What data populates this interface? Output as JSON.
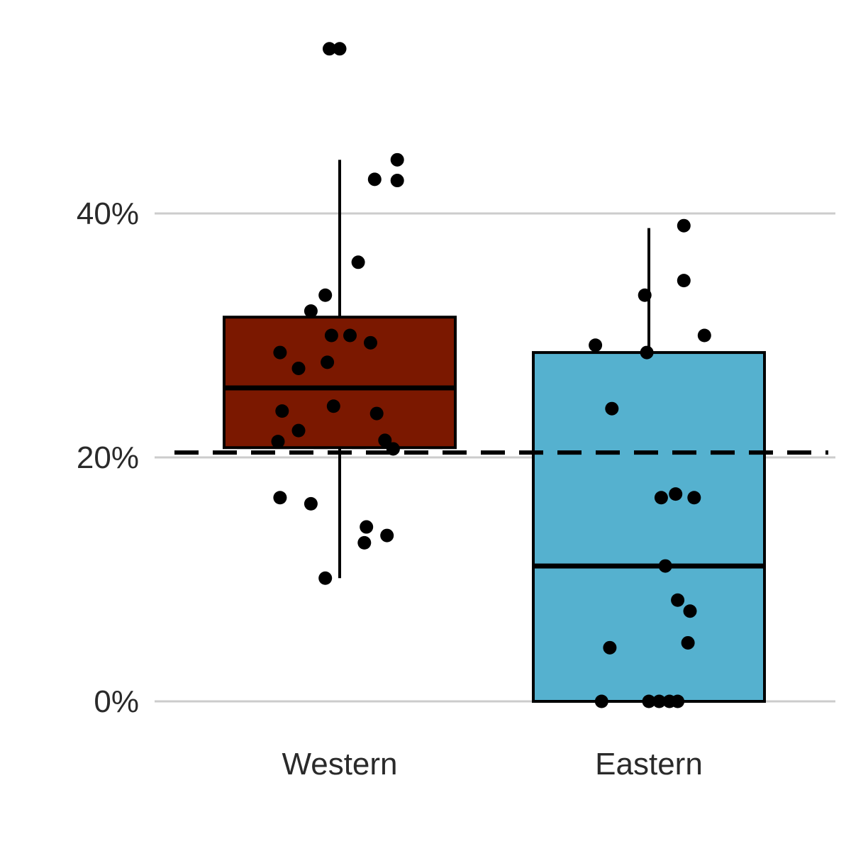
{
  "chart_data": {
    "type": "box",
    "title": "",
    "xlabel": "",
    "ylabel": "",
    "categories": [
      "Western",
      "Eastern"
    ],
    "ylim": [
      -0.025,
      0.535
    ],
    "yticks": [
      {
        "value": 0.0,
        "label": "0%"
      },
      {
        "value": 0.2,
        "label": "20%"
      },
      {
        "value": 0.4,
        "label": "40%"
      }
    ],
    "grid": "horizontal",
    "legend": "none",
    "reference_line": {
      "value": 0.204,
      "style": "dashed",
      "color": "#000000"
    },
    "boxes": [
      {
        "name": "Western",
        "color": "#7b1800",
        "q1": 0.208,
        "median": 0.257,
        "q3": 0.315,
        "whisker_low": 0.101,
        "whisker_high": 0.444
      },
      {
        "name": "Eastern",
        "color": "#55b1cf",
        "q1": 0.0,
        "median": 0.111,
        "q3": 0.286,
        "whisker_low": 0.0,
        "whisker_high": 0.388
      }
    ],
    "points": [
      {
        "group": "Western",
        "jitter": -0.05,
        "y": 0.535
      },
      {
        "group": "Western",
        "jitter": 0.0,
        "y": 0.535
      },
      {
        "group": "Western",
        "jitter": 0.28,
        "y": 0.444
      },
      {
        "group": "Western",
        "jitter": 0.17,
        "y": 0.428
      },
      {
        "group": "Western",
        "jitter": 0.28,
        "y": 0.427
      },
      {
        "group": "Western",
        "jitter": 0.09,
        "y": 0.36
      },
      {
        "group": "Western",
        "jitter": -0.07,
        "y": 0.333
      },
      {
        "group": "Western",
        "jitter": -0.14,
        "y": 0.32
      },
      {
        "group": "Western",
        "jitter": -0.04,
        "y": 0.3
      },
      {
        "group": "Western",
        "jitter": 0.05,
        "y": 0.3
      },
      {
        "group": "Western",
        "jitter": 0.15,
        "y": 0.294
      },
      {
        "group": "Western",
        "jitter": -0.29,
        "y": 0.286
      },
      {
        "group": "Western",
        "jitter": -0.06,
        "y": 0.278
      },
      {
        "group": "Western",
        "jitter": -0.2,
        "y": 0.273
      },
      {
        "group": "Western",
        "jitter": -0.03,
        "y": 0.242
      },
      {
        "group": "Western",
        "jitter": -0.28,
        "y": 0.238
      },
      {
        "group": "Western",
        "jitter": 0.18,
        "y": 0.236
      },
      {
        "group": "Western",
        "jitter": -0.2,
        "y": 0.222
      },
      {
        "group": "Western",
        "jitter": -0.3,
        "y": 0.213
      },
      {
        "group": "Western",
        "jitter": 0.22,
        "y": 0.214
      },
      {
        "group": "Western",
        "jitter": 0.26,
        "y": 0.207
      },
      {
        "group": "Western",
        "jitter": -0.29,
        "y": 0.167
      },
      {
        "group": "Western",
        "jitter": -0.14,
        "y": 0.162
      },
      {
        "group": "Western",
        "jitter": 0.13,
        "y": 0.143
      },
      {
        "group": "Western",
        "jitter": 0.23,
        "y": 0.136
      },
      {
        "group": "Western",
        "jitter": 0.12,
        "y": 0.13
      },
      {
        "group": "Western",
        "jitter": -0.07,
        "y": 0.101
      },
      {
        "group": "Eastern",
        "jitter": 0.17,
        "y": 0.39
      },
      {
        "group": "Eastern",
        "jitter": 0.17,
        "y": 0.345
      },
      {
        "group": "Eastern",
        "jitter": -0.02,
        "y": 0.333
      },
      {
        "group": "Eastern",
        "jitter": 0.27,
        "y": 0.3
      },
      {
        "group": "Eastern",
        "jitter": -0.26,
        "y": 0.292
      },
      {
        "group": "Eastern",
        "jitter": -0.01,
        "y": 0.286
      },
      {
        "group": "Eastern",
        "jitter": -0.18,
        "y": 0.24
      },
      {
        "group": "Eastern",
        "jitter": 0.13,
        "y": 0.17
      },
      {
        "group": "Eastern",
        "jitter": 0.06,
        "y": 0.167
      },
      {
        "group": "Eastern",
        "jitter": 0.22,
        "y": 0.167
      },
      {
        "group": "Eastern",
        "jitter": 0.08,
        "y": 0.111
      },
      {
        "group": "Eastern",
        "jitter": 0.14,
        "y": 0.083
      },
      {
        "group": "Eastern",
        "jitter": 0.2,
        "y": 0.074
      },
      {
        "group": "Eastern",
        "jitter": 0.19,
        "y": 0.048
      },
      {
        "group": "Eastern",
        "jitter": -0.19,
        "y": 0.044
      },
      {
        "group": "Eastern",
        "jitter": -0.23,
        "y": 0.0
      },
      {
        "group": "Eastern",
        "jitter": 0.0,
        "y": 0.0
      },
      {
        "group": "Eastern",
        "jitter": 0.05,
        "y": 0.0
      },
      {
        "group": "Eastern",
        "jitter": 0.1,
        "y": 0.0
      },
      {
        "group": "Eastern",
        "jitter": 0.14,
        "y": 0.0
      }
    ]
  }
}
